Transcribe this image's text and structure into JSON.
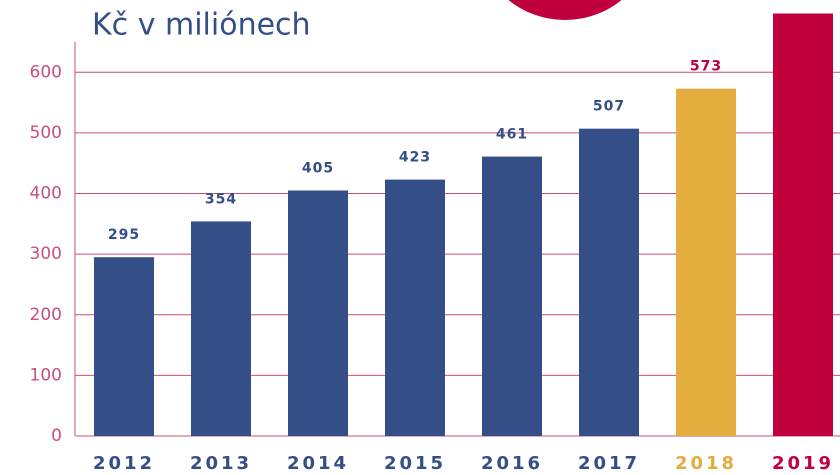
{
  "chart_data": {
    "type": "bar",
    "title": "Kč v miliónech",
    "categories": [
      "2012",
      "2013",
      "2014",
      "2015",
      "2016",
      "2017",
      "2018",
      "2019"
    ],
    "values": [
      295,
      354,
      405,
      423,
      461,
      507,
      573,
      697
    ],
    "colors": [
      "#344e87",
      "#344e87",
      "#344e87",
      "#344e87",
      "#344e87",
      "#344e87",
      "#e2ad3e",
      "#c0003c"
    ],
    "ylim": [
      0,
      650
    ],
    "yticks": [
      0,
      100,
      200,
      300,
      400,
      500,
      600
    ],
    "grid": true
  }
}
